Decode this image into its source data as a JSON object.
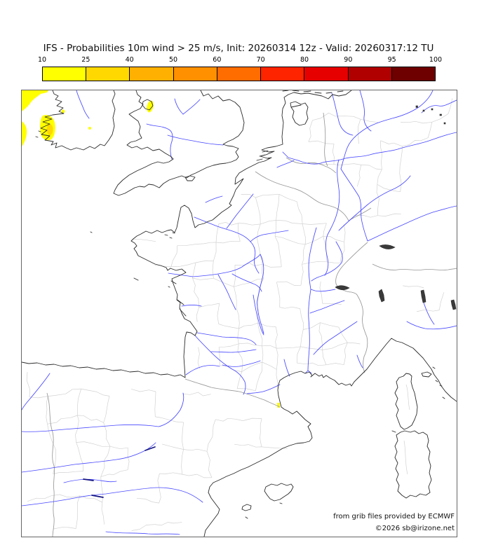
{
  "title": "IFS - Probabilities 10m wind > 25 m/s, Init: 20260314 12z - Valid: 20260317:12 TU",
  "colorbar": {
    "tick_labels": [
      "10",
      "25",
      "40",
      "50",
      "60",
      "70",
      "80",
      "90",
      "95",
      "100"
    ],
    "segment_colors": [
      "#ffff00",
      "#ffd800",
      "#ffb000",
      "#ff9000",
      "#ff6c00",
      "#ff2400",
      "#e60000",
      "#b00000",
      "#6e0000"
    ]
  },
  "map": {
    "credit_line1": "from grib files provided by ECMWF",
    "credit_line2": "©2026 sb@irizone.net",
    "colors": {
      "coastline": "#2b2b2b",
      "river": "#4747ff",
      "department_border": "#d2d2d2",
      "country_border": "#979797",
      "probability_low": "#ffff00",
      "probability_mid": "#ffd800"
    }
  }
}
